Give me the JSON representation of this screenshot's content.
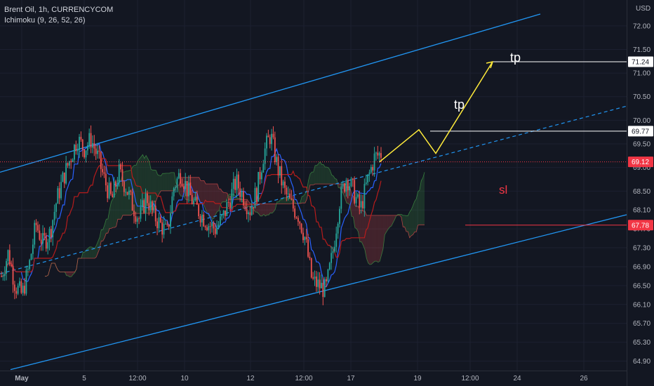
{
  "symbol_title": "Brent Oil, 1h, CURRENCYCOM",
  "indicator": "Ichimoku (9, 26, 52, 26)",
  "currency": "USD",
  "colors": {
    "background": "#131722",
    "up": "#26a69a",
    "down": "#ef5350",
    "channel": "#2196f3",
    "projection": "#ffeb3b",
    "tenkan": "#2962ff",
    "kijun": "#b71c1c",
    "cloud_bull": "#43a047",
    "cloud_bear": "#ef5350",
    "current_price": "#f23645",
    "sl": "#f23645",
    "tp_line": "#ffffff",
    "axis_text": "#b2b5be"
  },
  "annotations": {
    "tp1": "tp",
    "tp2": "tp",
    "sl": "sl"
  },
  "chart_data": {
    "type": "candlestick",
    "ylim": [
      64.7,
      72.25
    ],
    "y_ticks": [
      "72.00",
      "71.50",
      "71.00",
      "70.50",
      "70.00",
      "69.50",
      "69.00",
      "68.50",
      "68.10",
      "67.70",
      "67.30",
      "66.90",
      "66.50",
      "66.10",
      "65.70",
      "65.30",
      "64.90"
    ],
    "x_ticks": [
      {
        "label": "May",
        "bold": true
      },
      {
        "label": "5",
        "bold": false
      },
      {
        "label": "12:00",
        "bold": false
      },
      {
        "label": "10",
        "bold": false
      },
      {
        "label": "12",
        "bold": false
      },
      {
        "label": "12:00",
        "bold": false
      },
      {
        "label": "17",
        "bold": false
      },
      {
        "label": "19",
        "bold": false
      },
      {
        "label": "12:00",
        "bold": false
      },
      {
        "label": "24",
        "bold": false
      },
      {
        "label": "26",
        "bold": false
      }
    ],
    "price_tags": [
      {
        "value": 71.24,
        "label": "71.24",
        "kind": "tp"
      },
      {
        "value": 69.77,
        "label": "69.77",
        "kind": "tp"
      },
      {
        "value": 69.12,
        "label": "69.12",
        "kind": "current"
      },
      {
        "value": 67.78,
        "label": "67.78",
        "kind": "sl"
      }
    ],
    "levels": [
      {
        "name": "tp2",
        "value": 71.24
      },
      {
        "name": "tp1",
        "value": 69.77
      },
      {
        "name": "current",
        "value": 69.12
      },
      {
        "name": "sl",
        "value": 67.78
      }
    ],
    "candles_approx_path": [
      66.7,
      67.2,
      66.5,
      66.3,
      66.9,
      67.8,
      67.4,
      67.6,
      68.3,
      68.8,
      69.2,
      69.6,
      69.4,
      69.6,
      69.2,
      68.7,
      68.3,
      68.9,
      68.6,
      68.2,
      67.9,
      68.4,
      68.0,
      67.8,
      67.6,
      68.6,
      68.9,
      68.5,
      68.2,
      68.0,
      67.8,
      67.7,
      67.9,
      68.3,
      68.7,
      68.4,
      68.1,
      68.5,
      69.3,
      69.7,
      69.0,
      68.5,
      68.2,
      68.0,
      67.5,
      66.6,
      66.5,
      66.4,
      67.2,
      68.3,
      68.8,
      68.5,
      68.1,
      68.7,
      69.2,
      69.3
    ],
    "projection_path": [
      69.12,
      69.8,
      69.3,
      71.24
    ]
  }
}
